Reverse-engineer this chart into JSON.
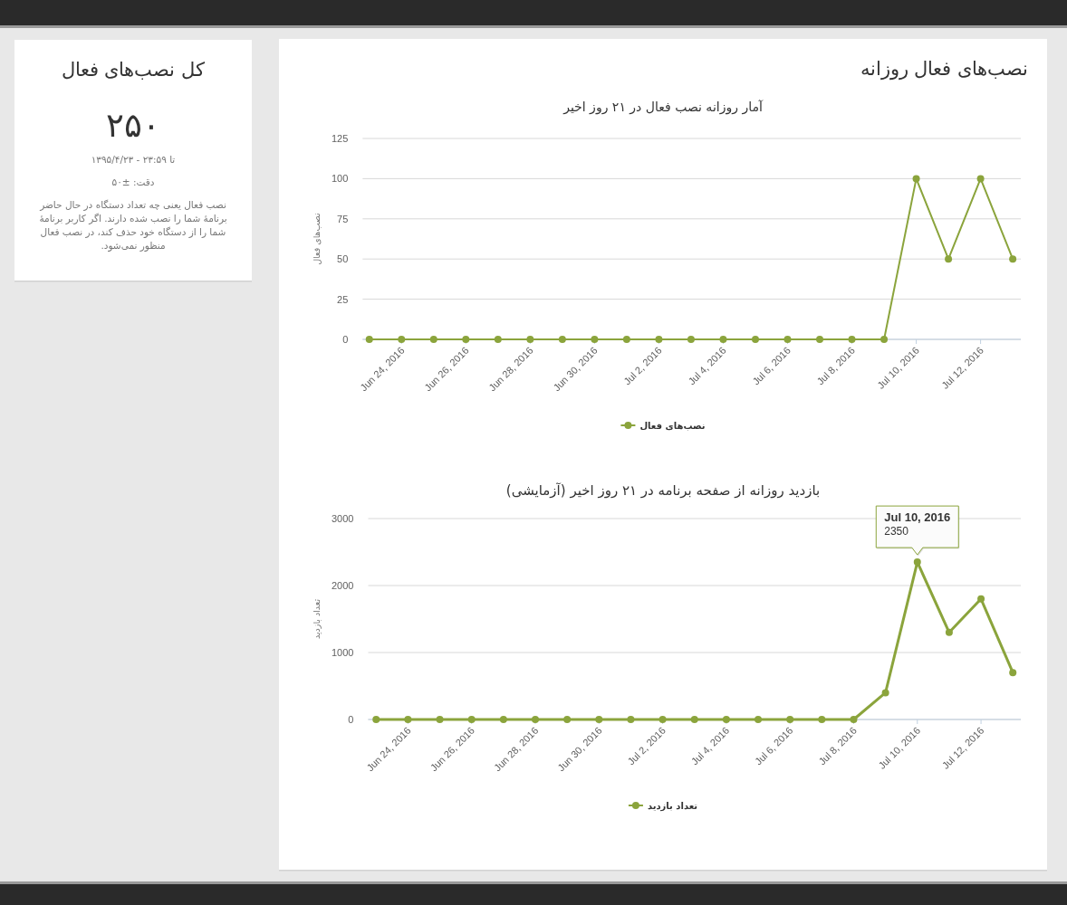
{
  "chart_data": [
    {
      "type": "other",
      "title": "کل نصب‌های فعال",
      "annotations": [
        "۲۵۰",
        "تا ۲۳:۵۹ - ۱۳۹۵/۴/۲۳",
        "دقت: ±۵۰",
        "نصب فعال یعنی چه تعداد دستگاه در حال حاضر برنامهٔ شما را نصب شده دارند. اگر کاربر برنامهٔ شما را از دستگاه خود حذف کند، در نصب فعال منظور نمی‌شود."
      ]
    },
    {
      "type": "line",
      "title": "نصب‌های فعال روزانه",
      "subtitle": "آمار روزانه نصب فعال در ۲۱ روز اخیر",
      "ylabel": "نصب‌های فعال",
      "x": [
        "2016-06-23",
        "2016-06-24",
        "2016-06-25",
        "2016-06-26",
        "2016-06-27",
        "2016-06-28",
        "2016-06-29",
        "2016-06-30",
        "2016-07-01",
        "2016-07-02",
        "2016-07-03",
        "2016-07-04",
        "2016-07-05",
        "2016-07-06",
        "2016-07-07",
        "2016-07-08",
        "2016-07-09",
        "2016-07-10",
        "2016-07-11",
        "2016-07-12",
        "2016-07-13"
      ],
      "series": [
        {
          "name": "نصب‌های فعال",
          "color": "#8ba43c",
          "values": [
            0,
            0,
            0,
            0,
            0,
            0,
            0,
            0,
            0,
            0,
            0,
            0,
            0,
            0,
            0,
            0,
            0,
            100,
            50,
            100,
            50
          ]
        }
      ],
      "xlim": [
        "2016-06-22T19:00",
        "2016-07-13T06:00"
      ],
      "xticks": [
        {
          "value": "2016-06-24",
          "label": "Jun 24, 2016"
        },
        {
          "value": "2016-06-26",
          "label": "Jun 26, 2016"
        },
        {
          "value": "2016-06-28",
          "label": "Jun 28, 2016"
        },
        {
          "value": "2016-06-30",
          "label": "Jun 30, 2016"
        },
        {
          "value": "2016-07-02",
          "label": "Jul 2, 2016"
        },
        {
          "value": "2016-07-04",
          "label": "Jul 4, 2016"
        },
        {
          "value": "2016-07-06",
          "label": "Jul 6, 2016"
        },
        {
          "value": "2016-07-08",
          "label": "Jul 8, 2016"
        },
        {
          "value": "2016-07-10",
          "label": "Jul 10, 2016"
        },
        {
          "value": "2016-07-12",
          "label": "Jul 12, 2016"
        }
      ],
      "ylim": [
        0,
        125
      ],
      "yticks": [
        0,
        25,
        50,
        75,
        100,
        125
      ],
      "grid": "y",
      "legend": "bottom",
      "marker": "circle"
    },
    {
      "type": "line",
      "title": "بازدید روزانه از صفحه برنامه در ۲۱ روز اخیر (آزمایشی)",
      "ylabel": "تعداد بازدید",
      "x": [
        "2016-06-23",
        "2016-06-24",
        "2016-06-25",
        "2016-06-26",
        "2016-06-27",
        "2016-06-28",
        "2016-06-29",
        "2016-06-30",
        "2016-07-01",
        "2016-07-02",
        "2016-07-03",
        "2016-07-04",
        "2016-07-05",
        "2016-07-06",
        "2016-07-07",
        "2016-07-08",
        "2016-07-09",
        "2016-07-10",
        "2016-07-11",
        "2016-07-12",
        "2016-07-13"
      ],
      "series": [
        {
          "name": "تعداد بازدید",
          "color": "#8ba43c",
          "values": [
            0,
            0,
            0,
            0,
            0,
            0,
            0,
            0,
            0,
            0,
            0,
            0,
            0,
            0,
            0,
            0,
            400,
            2350,
            1300,
            1800,
            700
          ]
        }
      ],
      "xlim": [
        "2016-06-22T18:00",
        "2016-07-13T06:00"
      ],
      "xticks": [
        {
          "value": "2016-06-24",
          "label": "Jun 24, 2016"
        },
        {
          "value": "2016-06-26",
          "label": "Jun 26, 2016"
        },
        {
          "value": "2016-06-28",
          "label": "Jun 28, 2016"
        },
        {
          "value": "2016-06-30",
          "label": "Jun 30, 2016"
        },
        {
          "value": "2016-07-02",
          "label": "Jul 2, 2016"
        },
        {
          "value": "2016-07-04",
          "label": "Jul 4, 2016"
        },
        {
          "value": "2016-07-06",
          "label": "Jul 6, 2016"
        },
        {
          "value": "2016-07-08",
          "label": "Jul 8, 2016"
        },
        {
          "value": "2016-07-10",
          "label": "Jul 10, 2016"
        },
        {
          "value": "2016-07-12",
          "label": "Jul 12, 2016"
        }
      ],
      "ylim": [
        0,
        3000
      ],
      "yticks": [
        0,
        1000,
        2000,
        3000
      ],
      "grid": "y",
      "legend": "bottom",
      "marker": "circle",
      "annotations": [
        "Jul 10, 2016",
        {
          "text": "2350",
          "x": "2016-07-10",
          "y": 2350
        }
      ]
    }
  ]
}
